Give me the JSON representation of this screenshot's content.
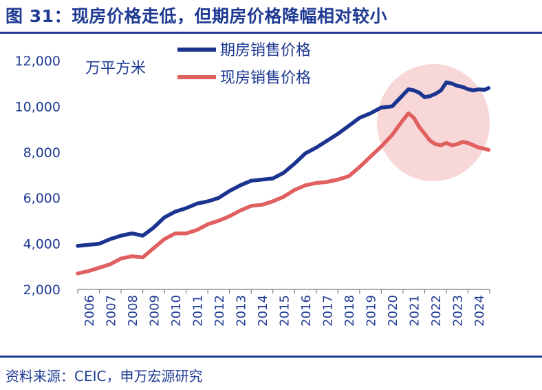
{
  "title": "图 31：现房价格走低，但期房价格降幅相对较小",
  "source": "资料来源：CEIC，申万宏源研究",
  "colors": {
    "accent": "#1f3a93",
    "presale": "#1a3490",
    "completed": "#e06060",
    "highlight": "#f4c9c9"
  },
  "chart_data": {
    "type": "line",
    "unit_label": "万平方米",
    "ylim": [
      2000,
      12000
    ],
    "yticks": [
      "2,000",
      "4,000",
      "6,000",
      "8,000",
      "10,000",
      "12,000"
    ],
    "xticks": [
      "2006",
      "2007",
      "2008",
      "2009",
      "2010",
      "2011",
      "2012",
      "2013",
      "2014",
      "2015",
      "2016",
      "2017",
      "2018",
      "2019",
      "2020",
      "2021",
      "2022",
      "2023",
      "2024"
    ],
    "grid": false,
    "legend_position": "top-left",
    "series": [
      {
        "name": "期房销售价格",
        "color": "#1a3490",
        "x": [
          2006.0,
          2006.5,
          2007.0,
          2007.5,
          2008.0,
          2008.5,
          2009.0,
          2009.5,
          2010.0,
          2010.5,
          2011.0,
          2011.5,
          2012.0,
          2012.5,
          2013.0,
          2013.5,
          2014.0,
          2014.5,
          2015.0,
          2015.5,
          2016.0,
          2016.5,
          2017.0,
          2017.5,
          2018.0,
          2018.5,
          2019.0,
          2019.5,
          2020.0,
          2020.5,
          2021.0,
          2021.25,
          2021.5,
          2021.75,
          2022.0,
          2022.25,
          2022.5,
          2022.75,
          2023.0,
          2023.25,
          2023.5,
          2023.75,
          2024.0,
          2024.25,
          2024.5,
          2024.75,
          2024.95
        ],
        "y": [
          3900,
          3950,
          4000,
          4200,
          4350,
          4450,
          4350,
          4700,
          5150,
          5400,
          5550,
          5750,
          5850,
          6000,
          6300,
          6550,
          6750,
          6800,
          6850,
          7100,
          7500,
          7950,
          8200,
          8500,
          8800,
          9150,
          9500,
          9700,
          9950,
          10000,
          10500,
          10750,
          10700,
          10600,
          10400,
          10450,
          10550,
          10700,
          11050,
          11000,
          10900,
          10850,
          10750,
          10700,
          10750,
          10720,
          10800
        ]
      },
      {
        "name": "现房销售价格",
        "color": "#e06060",
        "x": [
          2006.0,
          2006.5,
          2007.0,
          2007.5,
          2008.0,
          2008.5,
          2009.0,
          2009.5,
          2010.0,
          2010.5,
          2011.0,
          2011.5,
          2012.0,
          2012.5,
          2013.0,
          2013.5,
          2014.0,
          2014.5,
          2015.0,
          2015.5,
          2016.0,
          2016.5,
          2017.0,
          2017.5,
          2018.0,
          2018.5,
          2019.0,
          2019.5,
          2020.0,
          2020.5,
          2021.0,
          2021.25,
          2021.5,
          2021.75,
          2022.0,
          2022.25,
          2022.5,
          2022.75,
          2023.0,
          2023.25,
          2023.5,
          2023.75,
          2024.0,
          2024.25,
          2024.5,
          2024.75,
          2024.95
        ],
        "y": [
          2700,
          2800,
          2950,
          3100,
          3350,
          3450,
          3400,
          3800,
          4200,
          4450,
          4450,
          4600,
          4850,
          5000,
          5200,
          5450,
          5650,
          5700,
          5850,
          6050,
          6350,
          6550,
          6650,
          6700,
          6800,
          6950,
          7350,
          7800,
          8250,
          8750,
          9400,
          9700,
          9500,
          9100,
          8800,
          8500,
          8350,
          8300,
          8400,
          8300,
          8350,
          8450,
          8400,
          8300,
          8200,
          8150,
          8100
        ]
      }
    ]
  }
}
